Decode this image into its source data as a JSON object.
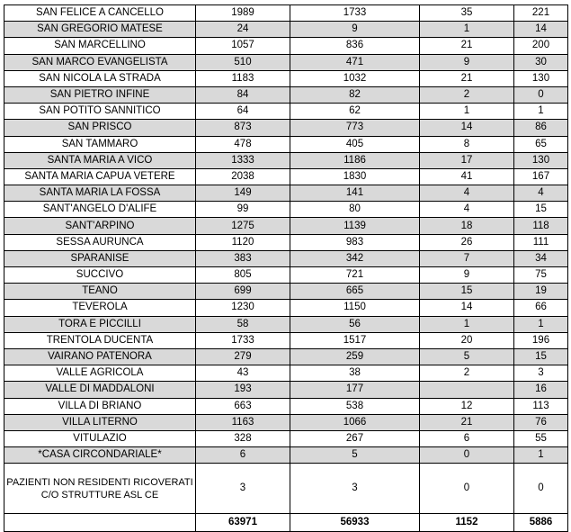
{
  "rows": [
    {
      "name": "SAN FELICE A CANCELLO",
      "v1": "1989",
      "v2": "1733",
      "v3": "35",
      "v4": "221",
      "shaded": false
    },
    {
      "name": "SAN GREGORIO MATESE",
      "v1": "24",
      "v2": "9",
      "v3": "1",
      "v4": "14",
      "shaded": true
    },
    {
      "name": "SAN MARCELLINO",
      "v1": "1057",
      "v2": "836",
      "v3": "21",
      "v4": "200",
      "shaded": false
    },
    {
      "name": "SAN MARCO EVANGELISTA",
      "v1": "510",
      "v2": "471",
      "v3": "9",
      "v4": "30",
      "shaded": true
    },
    {
      "name": "SAN NICOLA LA STRADA",
      "v1": "1183",
      "v2": "1032",
      "v3": "21",
      "v4": "130",
      "shaded": false
    },
    {
      "name": "SAN PIETRO INFINE",
      "v1": "84",
      "v2": "82",
      "v3": "2",
      "v4": "0",
      "shaded": true
    },
    {
      "name": "SAN POTITO SANNITICO",
      "v1": "64",
      "v2": "62",
      "v3": "1",
      "v4": "1",
      "shaded": false
    },
    {
      "name": "SAN PRISCO",
      "v1": "873",
      "v2": "773",
      "v3": "14",
      "v4": "86",
      "shaded": true
    },
    {
      "name": "SAN TAMMARO",
      "v1": "478",
      "v2": "405",
      "v3": "8",
      "v4": "65",
      "shaded": false
    },
    {
      "name": "SANTA MARIA A VICO",
      "v1": "1333",
      "v2": "1186",
      "v3": "17",
      "v4": "130",
      "shaded": true
    },
    {
      "name": "SANTA MARIA CAPUA VETERE",
      "v1": "2038",
      "v2": "1830",
      "v3": "41",
      "v4": "167",
      "shaded": false
    },
    {
      "name": "SANTA MARIA LA FOSSA",
      "v1": "149",
      "v2": "141",
      "v3": "4",
      "v4": "4",
      "shaded": true
    },
    {
      "name": "SANT'ANGELO D'ALIFE",
      "v1": "99",
      "v2": "80",
      "v3": "4",
      "v4": "15",
      "shaded": false
    },
    {
      "name": "SANT'ARPINO",
      "v1": "1275",
      "v2": "1139",
      "v3": "18",
      "v4": "118",
      "shaded": true
    },
    {
      "name": "SESSA AURUNCA",
      "v1": "1120",
      "v2": "983",
      "v3": "26",
      "v4": "111",
      "shaded": false
    },
    {
      "name": "SPARANISE",
      "v1": "383",
      "v2": "342",
      "v3": "7",
      "v4": "34",
      "shaded": true
    },
    {
      "name": "SUCCIVO",
      "v1": "805",
      "v2": "721",
      "v3": "9",
      "v4": "75",
      "shaded": false
    },
    {
      "name": "TEANO",
      "v1": "699",
      "v2": "665",
      "v3": "15",
      "v4": "19",
      "shaded": true
    },
    {
      "name": "TEVEROLA",
      "v1": "1230",
      "v2": "1150",
      "v3": "14",
      "v4": "66",
      "shaded": false
    },
    {
      "name": "TORA E PICCILLI",
      "v1": "58",
      "v2": "56",
      "v3": "1",
      "v4": "1",
      "shaded": true
    },
    {
      "name": "TRENTOLA DUCENTA",
      "v1": "1733",
      "v2": "1517",
      "v3": "20",
      "v4": "196",
      "shaded": false
    },
    {
      "name": "VAIRANO PATENORA",
      "v1": "279",
      "v2": "259",
      "v3": "5",
      "v4": "15",
      "shaded": true
    },
    {
      "name": "VALLE AGRICOLA",
      "v1": "43",
      "v2": "38",
      "v3": "2",
      "v4": "3",
      "shaded": false
    },
    {
      "name": "VALLE DI MADDALONI",
      "v1": "193",
      "v2": "177",
      "v3": "",
      "v4": "16",
      "shaded": true
    },
    {
      "name": "VILLA DI BRIANO",
      "v1": "663",
      "v2": "538",
      "v3": "12",
      "v4": "113",
      "shaded": false
    },
    {
      "name": "VILLA LITERNO",
      "v1": "1163",
      "v2": "1066",
      "v3": "21",
      "v4": "76",
      "shaded": true
    },
    {
      "name": "VITULAZIO",
      "v1": "328",
      "v2": "267",
      "v3": "6",
      "v4": "55",
      "shaded": false
    },
    {
      "name": "*CASA CIRCONDARIALE*",
      "v1": "6",
      "v2": "5",
      "v3": "0",
      "v4": "1",
      "shaded": true
    },
    {
      "name": "PAZIENTI NON RESIDENTI RICOVERATI C/O STRUTTURE ASL CE",
      "v1": "3",
      "v2": "3",
      "v3": "0",
      "v4": "0",
      "shaded": false,
      "tall": true
    }
  ],
  "totals": {
    "name": "",
    "v1": "63971",
    "v2": "56933",
    "v3": "1152",
    "v4": "5886"
  },
  "colors": {
    "shade": "#d9d9d9",
    "border": "#000000"
  }
}
